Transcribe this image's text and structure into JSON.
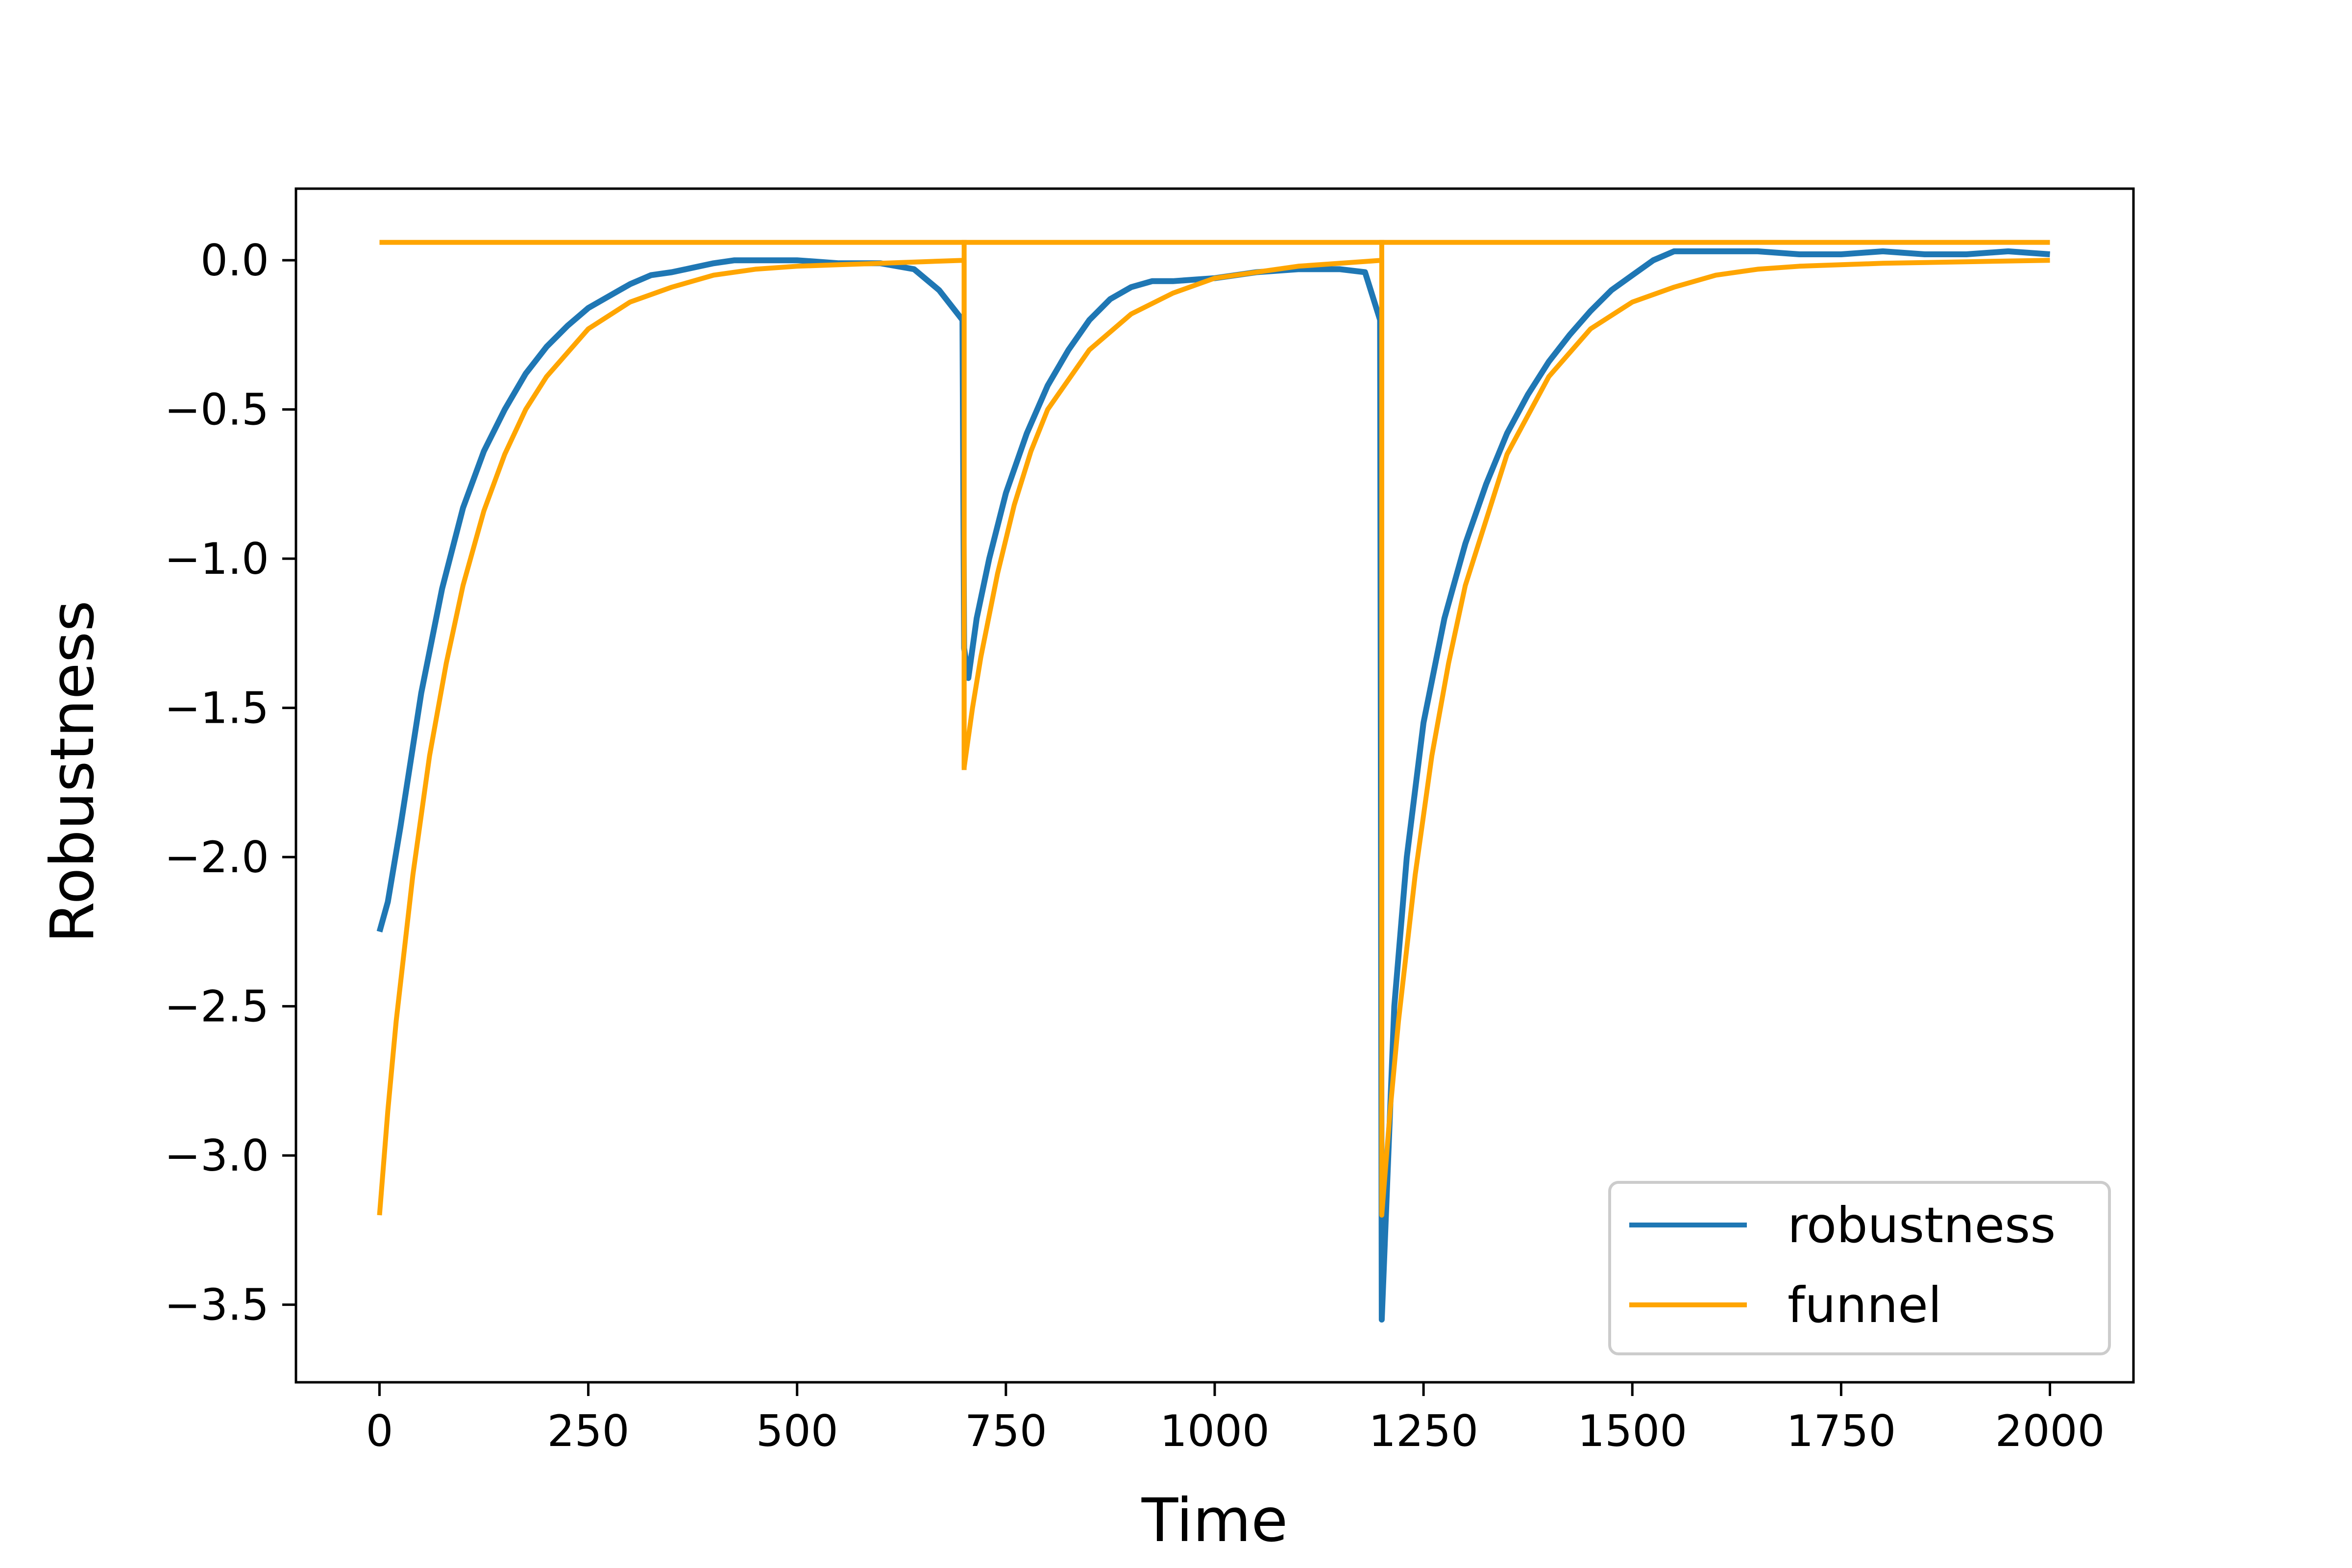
{
  "chart_data": {
    "type": "line",
    "title": "",
    "xlabel": "Time",
    "ylabel": "Robustness",
    "xlim": [
      -100,
      2100
    ],
    "ylim": [
      -3.76,
      0.24
    ],
    "xticks": [
      0,
      250,
      500,
      750,
      1000,
      1250,
      1500,
      1750,
      2000
    ],
    "xtick_labels": [
      "0",
      "250",
      "500",
      "750",
      "1000",
      "1250",
      "1500",
      "1750",
      "2000"
    ],
    "yticks": [
      0.0,
      -0.5,
      -1.0,
      -1.5,
      -2.0,
      -2.5,
      -3.0,
      -3.5
    ],
    "ytick_labels": [
      "0.0",
      "−0.5",
      "−1.0",
      "−1.5",
      "−2.0",
      "−2.5",
      "−3.0",
      "−3.5"
    ],
    "grid": false,
    "legend_position": "lower-right",
    "series": [
      {
        "name": "robustness",
        "color": "#1f77b4",
        "x": [
          0,
          10,
          25,
          50,
          75,
          100,
          125,
          150,
          175,
          200,
          225,
          250,
          275,
          300,
          325,
          350,
          375,
          400,
          425,
          450,
          500,
          550,
          600,
          640,
          670,
          698,
          700,
          705,
          715,
          730,
          750,
          775,
          800,
          825,
          850,
          875,
          900,
          925,
          950,
          1000,
          1050,
          1100,
          1150,
          1180,
          1198,
          1200,
          1205,
          1215,
          1230,
          1250,
          1275,
          1300,
          1325,
          1350,
          1375,
          1400,
          1425,
          1450,
          1475,
          1500,
          1525,
          1550,
          1575,
          1600,
          1650,
          1700,
          1750,
          1800,
          1850,
          1900,
          1950,
          2000
        ],
        "y": [
          -2.25,
          -2.15,
          -1.9,
          -1.45,
          -1.1,
          -0.83,
          -0.64,
          -0.5,
          -0.38,
          -0.29,
          -0.22,
          -0.16,
          -0.12,
          -0.08,
          -0.05,
          -0.04,
          -0.025,
          -0.01,
          0.0,
          0.0,
          0.0,
          -0.01,
          -0.01,
          -0.03,
          -0.1,
          -0.2,
          -1.3,
          -1.4,
          -1.2,
          -1.0,
          -0.78,
          -0.58,
          -0.42,
          -0.3,
          -0.2,
          -0.13,
          -0.09,
          -0.07,
          -0.07,
          -0.06,
          -0.04,
          -0.03,
          -0.03,
          -0.04,
          -0.2,
          -3.55,
          -3.2,
          -2.5,
          -2.0,
          -1.55,
          -1.2,
          -0.95,
          -0.75,
          -0.58,
          -0.45,
          -0.34,
          -0.25,
          -0.17,
          -0.1,
          -0.05,
          0.0,
          0.03,
          0.03,
          0.03,
          0.03,
          0.02,
          0.02,
          0.03,
          0.02,
          0.02,
          0.03,
          0.02
        ]
      },
      {
        "name": "funnel",
        "color": "#ffa500",
        "x": [
          0,
          10,
          20,
          40,
          60,
          80,
          100,
          125,
          150,
          175,
          200,
          250,
          300,
          350,
          400,
          450,
          500,
          550,
          600,
          650,
          700,
          700,
          710,
          720,
          740,
          760,
          780,
          800,
          850,
          900,
          950,
          1000,
          1050,
          1100,
          1150,
          1200,
          1200,
          1210,
          1220,
          1240,
          1260,
          1280,
          1300,
          1350,
          1400,
          1450,
          1500,
          1550,
          1600,
          1650,
          1700,
          1750,
          1800,
          1900,
          2000
        ],
        "y": [
          -3.2,
          -2.85,
          -2.55,
          -2.06,
          -1.66,
          -1.35,
          -1.09,
          -0.84,
          -0.65,
          -0.5,
          -0.39,
          -0.23,
          -0.14,
          -0.09,
          -0.05,
          -0.03,
          -0.02,
          -0.015,
          -0.01,
          -0.005,
          0.0,
          -1.7,
          -1.5,
          -1.33,
          -1.05,
          -0.82,
          -0.64,
          -0.5,
          -0.3,
          -0.18,
          -0.11,
          -0.06,
          -0.04,
          -0.02,
          -0.01,
          0.0,
          -3.2,
          -2.85,
          -2.55,
          -2.06,
          -1.66,
          -1.35,
          -1.09,
          -0.65,
          -0.39,
          -0.23,
          -0.14,
          -0.09,
          -0.05,
          -0.03,
          -0.02,
          -0.015,
          -0.01,
          -0.005,
          0.0
        ]
      },
      {
        "name": "",
        "color": "#ffa500",
        "x": [
          0,
          2000
        ],
        "y": [
          0.06,
          0.06
        ]
      }
    ],
    "vertical_segments": [
      {
        "x": 700,
        "y": [
          0.06,
          -1.7
        ],
        "color": "#ffa500"
      },
      {
        "x": 1200,
        "y": [
          0.06,
          -3.2
        ],
        "color": "#ffa500"
      }
    ]
  }
}
